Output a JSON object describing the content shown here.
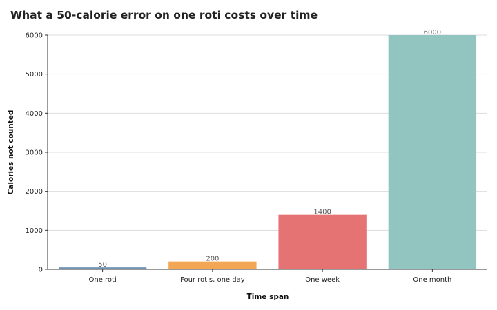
{
  "chart_data": {
    "type": "bar",
    "title": "What a 50-calorie error on one roti costs over time",
    "xlabel": "Time span",
    "ylabel": "Calories not counted",
    "categories": [
      "One roti",
      "Four rotis, one day",
      "One week",
      "One month"
    ],
    "values": [
      50,
      200,
      1400,
      6000
    ],
    "colors": [
      "#6f93b7",
      "#f3a653",
      "#e67374",
      "#92c5c0"
    ],
    "ylim": [
      0,
      6000
    ],
    "yticks": [
      0,
      1000,
      2000,
      3000,
      4000,
      5000,
      6000
    ],
    "grid": true,
    "legend": "none"
  }
}
